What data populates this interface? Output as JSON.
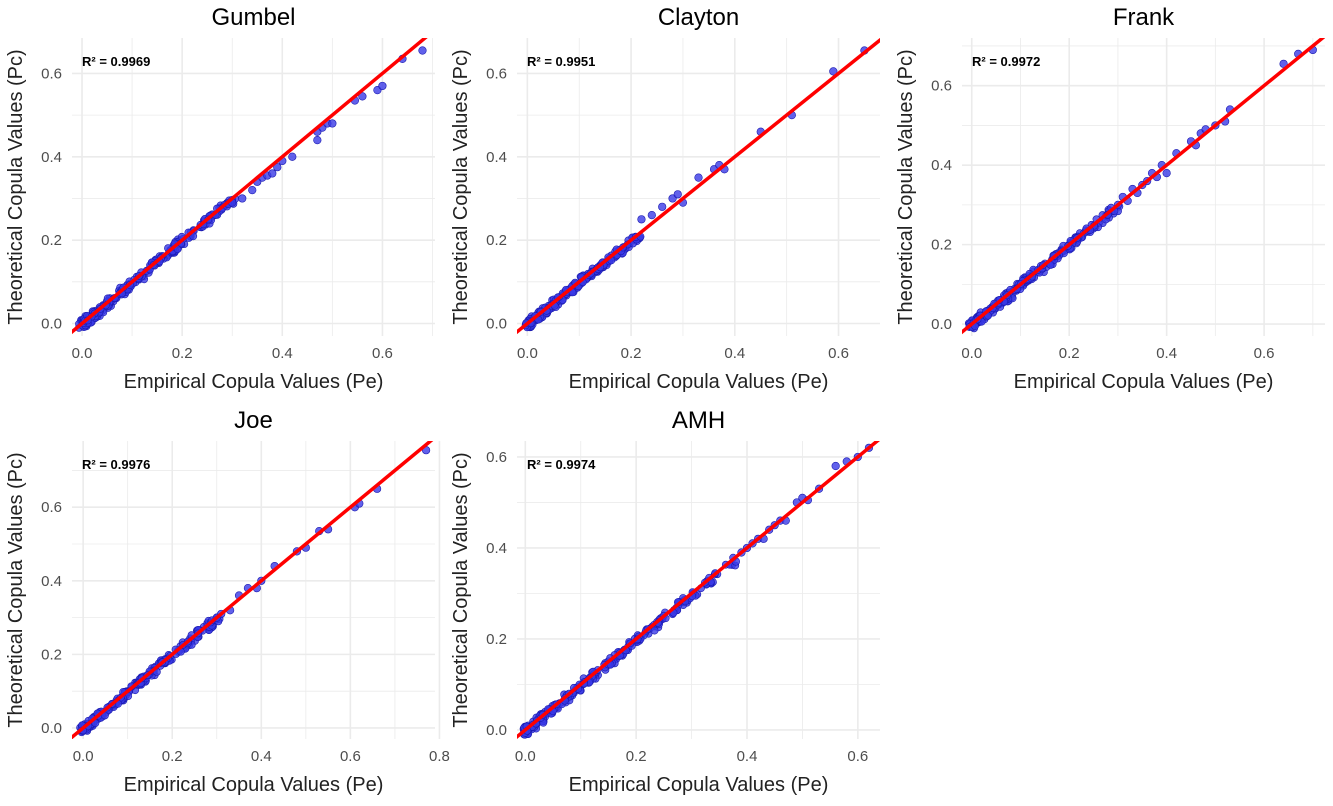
{
  "figure": {
    "background": "#ffffff"
  },
  "style": {
    "point_color": "#3a3ae6",
    "point_stroke": "#1a1ab0",
    "line_color": "#ff0000",
    "grid_color": "#ebebeb"
  },
  "chart_data": [
    {
      "type": "scatter",
      "title": "Gumbel",
      "xlabel": "Empirical Copula Values (Pe)",
      "ylabel": "Theoretical Copula Values (Pc)",
      "annotation": "R² = 0.9969",
      "xlim": [
        -0.02,
        0.705
      ],
      "ylim": [
        -0.03,
        0.685
      ],
      "xticks": [
        0,
        0.2,
        0.4,
        0.6
      ],
      "xtick_labels": [
        "0.0",
        "0.2",
        "0.4",
        "0.6"
      ],
      "yticks": [
        0,
        0.2,
        0.4,
        0.6
      ],
      "ytick_labels": [
        "0.0",
        "0.2",
        "0.4",
        "0.6"
      ],
      "fit_line": {
        "slope": 1,
        "intercept": 0
      },
      "points": [
        [
          0.3,
          0.29
        ],
        [
          0.32,
          0.3
        ],
        [
          0.34,
          0.32
        ],
        [
          0.35,
          0.34
        ],
        [
          0.36,
          0.35
        ],
        [
          0.37,
          0.355
        ],
        [
          0.38,
          0.36
        ],
        [
          0.39,
          0.375
        ],
        [
          0.4,
          0.39
        ],
        [
          0.42,
          0.4
        ],
        [
          0.47,
          0.46
        ],
        [
          0.47,
          0.44
        ],
        [
          0.48,
          0.47
        ],
        [
          0.49,
          0.48
        ],
        [
          0.5,
          0.48
        ],
        [
          0.545,
          0.535
        ],
        [
          0.56,
          0.545
        ],
        [
          0.59,
          0.56
        ],
        [
          0.6,
          0.57
        ],
        [
          0.64,
          0.635
        ],
        [
          0.68,
          0.655
        ]
      ],
      "cloud": {
        "min": 0.0,
        "max": 0.3,
        "spread": 0.008
      }
    },
    {
      "type": "scatter",
      "title": "Clayton",
      "xlabel": "Empirical Copula Values (Pe)",
      "ylabel": "Theoretical Copula Values (Pc)",
      "annotation": "R² = 0.9951",
      "xlim": [
        -0.02,
        0.68
      ],
      "ylim": [
        -0.03,
        0.685
      ],
      "xticks": [
        0,
        0.2,
        0.4,
        0.6
      ],
      "xtick_labels": [
        "0.0",
        "0.2",
        "0.4",
        "0.6"
      ],
      "yticks": [
        0,
        0.2,
        0.4,
        0.6
      ],
      "ytick_labels": [
        "0.0",
        "0.2",
        "0.4",
        "0.6"
      ],
      "fit_line": {
        "slope": 1,
        "intercept": 0
      },
      "points": [
        [
          0.22,
          0.25
        ],
        [
          0.24,
          0.26
        ],
        [
          0.26,
          0.28
        ],
        [
          0.28,
          0.3
        ],
        [
          0.29,
          0.31
        ],
        [
          0.3,
          0.29
        ],
        [
          0.33,
          0.35
        ],
        [
          0.36,
          0.37
        ],
        [
          0.37,
          0.38
        ],
        [
          0.38,
          0.37
        ],
        [
          0.45,
          0.46
        ],
        [
          0.51,
          0.5
        ],
        [
          0.59,
          0.605
        ],
        [
          0.65,
          0.655
        ]
      ],
      "cloud": {
        "min": 0.0,
        "max": 0.22,
        "spread": 0.007
      }
    },
    {
      "type": "scatter",
      "title": "Frank",
      "xlabel": "Empirical Copula Values (Pe)",
      "ylabel": "Theoretical Copula Values (Pc)",
      "annotation": "R² = 0.9972",
      "xlim": [
        -0.02,
        0.725
      ],
      "ylim": [
        -0.03,
        0.72
      ],
      "xticks": [
        0,
        0.2,
        0.4,
        0.6
      ],
      "xtick_labels": [
        "0.0",
        "0.2",
        "0.4",
        "0.6"
      ],
      "yticks": [
        0,
        0.2,
        0.4,
        0.6
      ],
      "ytick_labels": [
        "0.0",
        "0.2",
        "0.4",
        "0.6"
      ],
      "fit_line": {
        "slope": 1,
        "intercept": 0
      },
      "points": [
        [
          0.3,
          0.3
        ],
        [
          0.31,
          0.32
        ],
        [
          0.32,
          0.31
        ],
        [
          0.33,
          0.34
        ],
        [
          0.34,
          0.33
        ],
        [
          0.35,
          0.35
        ],
        [
          0.36,
          0.36
        ],
        [
          0.37,
          0.38
        ],
        [
          0.38,
          0.37
        ],
        [
          0.39,
          0.4
        ],
        [
          0.4,
          0.38
        ],
        [
          0.42,
          0.43
        ],
        [
          0.45,
          0.46
        ],
        [
          0.46,
          0.45
        ],
        [
          0.47,
          0.48
        ],
        [
          0.48,
          0.49
        ],
        [
          0.5,
          0.5
        ],
        [
          0.52,
          0.51
        ],
        [
          0.53,
          0.54
        ],
        [
          0.64,
          0.655
        ],
        [
          0.67,
          0.68
        ],
        [
          0.7,
          0.69
        ]
      ],
      "cloud": {
        "min": 0.0,
        "max": 0.3,
        "spread": 0.008
      }
    },
    {
      "type": "scatter",
      "title": "Joe",
      "xlabel": "Empirical Copula Values (Pe)",
      "ylabel": "Theoretical Copula Values (Pc)",
      "annotation": "R² = 0.9976",
      "xlim": [
        -0.025,
        0.79
      ],
      "ylim": [
        -0.03,
        0.78
      ],
      "xticks": [
        0,
        0.2,
        0.4,
        0.6,
        0.8
      ],
      "xtick_labels": [
        "0.0",
        "0.2",
        "0.4",
        "0.6",
        "0.8"
      ],
      "yticks": [
        0,
        0.2,
        0.4,
        0.6
      ],
      "ytick_labels": [
        "0.0",
        "0.2",
        "0.4",
        "0.6"
      ],
      "fit_line": {
        "slope": 1,
        "intercept": 0
      },
      "points": [
        [
          0.3,
          0.3
        ],
        [
          0.31,
          0.31
        ],
        [
          0.33,
          0.32
        ],
        [
          0.35,
          0.36
        ],
        [
          0.37,
          0.38
        ],
        [
          0.39,
          0.38
        ],
        [
          0.4,
          0.4
        ],
        [
          0.43,
          0.44
        ],
        [
          0.48,
          0.48
        ],
        [
          0.5,
          0.49
        ],
        [
          0.53,
          0.535
        ],
        [
          0.55,
          0.54
        ],
        [
          0.61,
          0.6
        ],
        [
          0.62,
          0.61
        ],
        [
          0.66,
          0.65
        ],
        [
          0.77,
          0.755
        ]
      ],
      "cloud": {
        "min": 0.0,
        "max": 0.3,
        "spread": 0.008
      }
    },
    {
      "type": "scatter",
      "title": "AMH",
      "xlabel": "Empirical Copula Values (Pe)",
      "ylabel": "Theoretical Copula Values (Pc)",
      "annotation": "R² = 0.9974",
      "xlim": [
        -0.015,
        0.64
      ],
      "ylim": [
        -0.02,
        0.635
      ],
      "xticks": [
        0,
        0.2,
        0.4,
        0.6
      ],
      "xtick_labels": [
        "0.0",
        "0.2",
        "0.4",
        "0.6"
      ],
      "yticks": [
        0,
        0.2,
        0.4,
        0.6
      ],
      "ytick_labels": [
        "0.0",
        "0.2",
        "0.4",
        "0.6"
      ],
      "fit_line": {
        "slope": 1,
        "intercept": 0
      },
      "points": [
        [
          0.38,
          0.37
        ],
        [
          0.39,
          0.39
        ],
        [
          0.4,
          0.4
        ],
        [
          0.41,
          0.41
        ],
        [
          0.42,
          0.42
        ],
        [
          0.43,
          0.42
        ],
        [
          0.44,
          0.44
        ],
        [
          0.45,
          0.45
        ],
        [
          0.46,
          0.46
        ],
        [
          0.47,
          0.46
        ],
        [
          0.49,
          0.5
        ],
        [
          0.5,
          0.51
        ],
        [
          0.51,
          0.505
        ],
        [
          0.53,
          0.53
        ],
        [
          0.56,
          0.58
        ],
        [
          0.58,
          0.59
        ],
        [
          0.6,
          0.6
        ],
        [
          0.62,
          0.62
        ]
      ],
      "cloud": {
        "min": 0.0,
        "max": 0.38,
        "spread": 0.007
      }
    }
  ]
}
